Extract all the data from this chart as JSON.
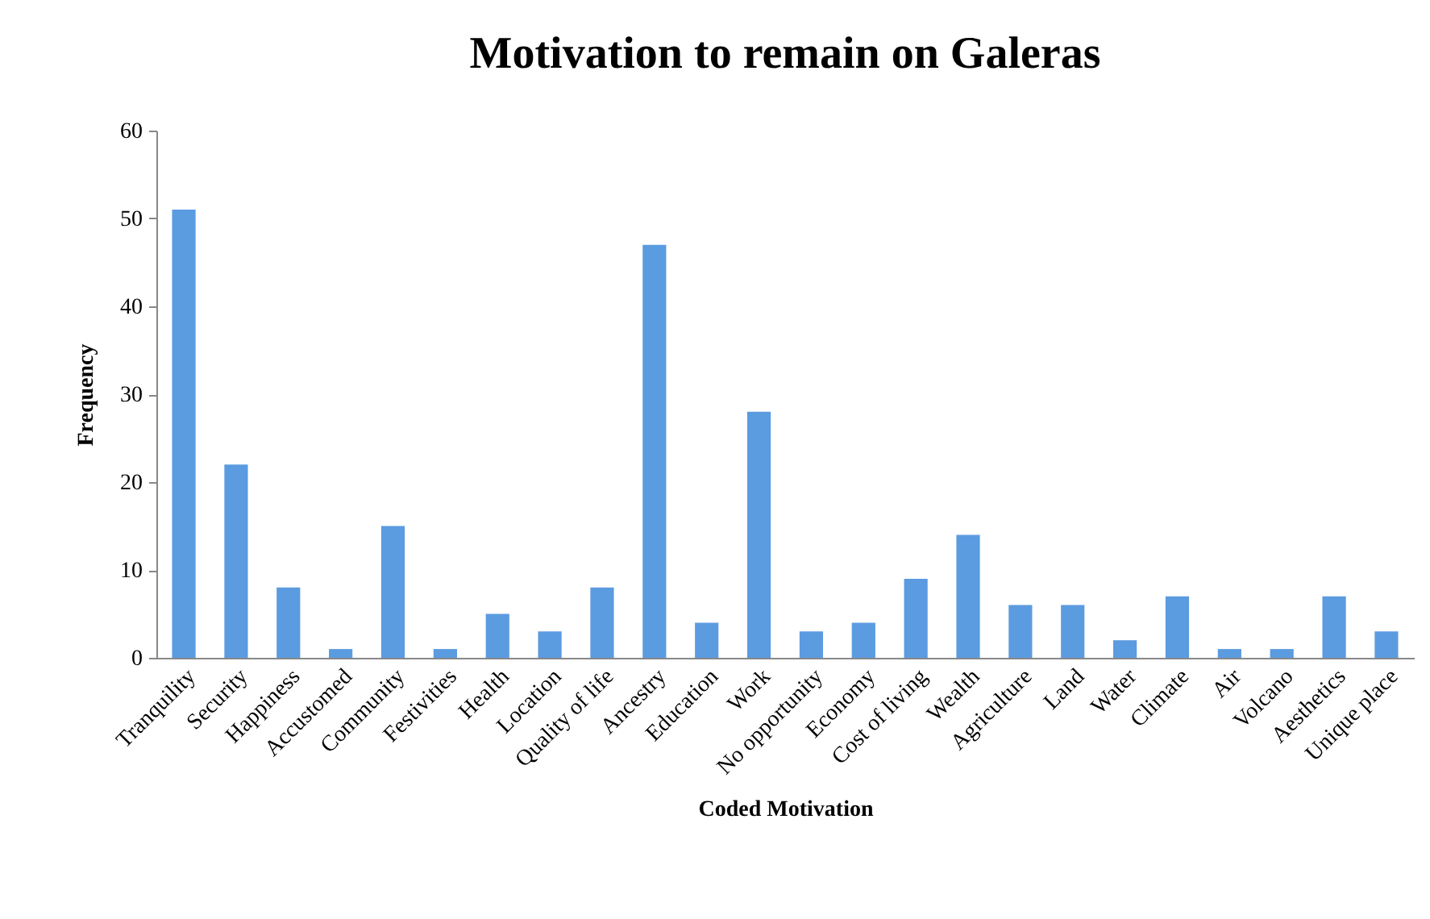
{
  "chart_data": {
    "type": "bar",
    "title": "Motivation to remain on Galeras",
    "xlabel": "Coded Motivation",
    "ylabel": "Frequency",
    "categories": [
      "Tranquility",
      "Security",
      "Happiness",
      "Accustomed",
      "Community",
      "Festivities",
      "Health",
      "Location",
      "Quality of life",
      "Ancestry",
      "Education",
      "Work",
      "No opportunity",
      "Economy",
      "Cost of living",
      "Wealth",
      "Agriculture",
      "Land",
      "Water",
      "Climate",
      "Air",
      "Volcano",
      "Aesthetics",
      "Unique place"
    ],
    "values": [
      51,
      22,
      8,
      1,
      15,
      1,
      5,
      3,
      8,
      47,
      4,
      28,
      3,
      4,
      9,
      14,
      6,
      6,
      2,
      7,
      1,
      1,
      7,
      3
    ],
    "color": "#5b9be0",
    "ylim": [
      0,
      60
    ],
    "yticks": [
      0,
      10,
      20,
      30,
      40,
      50,
      60
    ],
    "grid": false
  }
}
